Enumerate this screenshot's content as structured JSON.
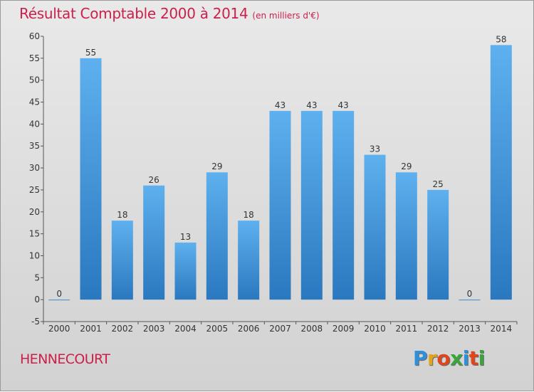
{
  "header": {
    "title": "Résultat Comptable 2000 à 2014",
    "subtitle": "(en milliers d'€)"
  },
  "footer": {
    "commune": "HENNECOURT",
    "logo_letters": [
      "P",
      "r",
      "o",
      "x",
      "i",
      "t",
      "i"
    ],
    "logo_colors": [
      "#2f8fd8",
      "#e0a51c",
      "#e0451c",
      "#3aa53a",
      "#2f8fd8",
      "#e0451c",
      "#3aa53a"
    ]
  },
  "colors": {
    "bar_top": "#5eb0ee",
    "bar_bottom": "#2a78bf",
    "title": "#cc1f4a"
  },
  "chart_data": {
    "type": "bar",
    "title": "Résultat Comptable 2000 à 2014",
    "subtitle": "(en milliers d'€)",
    "categories": [
      "2000",
      "2001",
      "2002",
      "2003",
      "2004",
      "2005",
      "2006",
      "2007",
      "2008",
      "2009",
      "2010",
      "2011",
      "2012",
      "2013",
      "2014"
    ],
    "values": [
      0,
      55,
      18,
      26,
      13,
      29,
      18,
      43,
      43,
      43,
      33,
      29,
      25,
      0,
      58
    ],
    "ylim": [
      -5,
      60
    ],
    "yticks": [
      -5,
      0,
      5,
      10,
      15,
      20,
      25,
      30,
      35,
      40,
      45,
      50,
      55,
      60
    ],
    "xlabel": "",
    "ylabel": "",
    "grid": false,
    "legend": "none"
  }
}
